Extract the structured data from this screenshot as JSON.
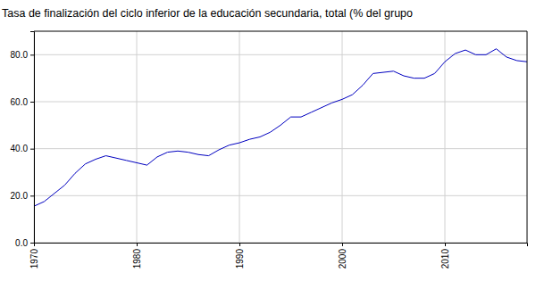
{
  "chart_data": {
    "type": "line",
    "title": "Tasa de finalización del ciclo inferior de la educación secundaria, total (% del grupo",
    "x": [
      1970,
      1971,
      1972,
      1973,
      1974,
      1975,
      1976,
      1977,
      1978,
      1979,
      1980,
      1981,
      1982,
      1983,
      1984,
      1985,
      1986,
      1987,
      1988,
      1989,
      1990,
      1991,
      1992,
      1993,
      1994,
      1995,
      1996,
      1997,
      1998,
      1999,
      2000,
      2001,
      2002,
      2003,
      2004,
      2005,
      2006,
      2007,
      2008,
      2009,
      2010,
      2011,
      2012,
      2013,
      2014,
      2015,
      2016,
      2017,
      2018
    ],
    "values": [
      15.5,
      17.5,
      21,
      24.5,
      29.5,
      33.5,
      35.5,
      37,
      36,
      35,
      34,
      33,
      36.5,
      38.5,
      39,
      38.5,
      37.5,
      37,
      39.5,
      41.5,
      42.5,
      44,
      45,
      47,
      50,
      53.5,
      53.5,
      55.5,
      57.5,
      59.5,
      61,
      63,
      67,
      72,
      72.5,
      73,
      71,
      70,
      70,
      72,
      77,
      80.5,
      82,
      80,
      80,
      82.5,
      79,
      77.5,
      77
    ],
    "color": "#0000c0",
    "xlim": [
      1970,
      2018
    ],
    "xticks": [
      1970,
      1980,
      1990,
      2000,
      2010
    ],
    "ylim": [
      0,
      90
    ],
    "yticks": [
      {
        "value": 0,
        "label": "0.0"
      },
      {
        "value": 20,
        "label": "20.0"
      },
      {
        "value": 40,
        "label": "40.0"
      },
      {
        "value": 60,
        "label": "60.0"
      },
      {
        "value": 80,
        "label": "80.0"
      }
    ],
    "grid": true
  }
}
